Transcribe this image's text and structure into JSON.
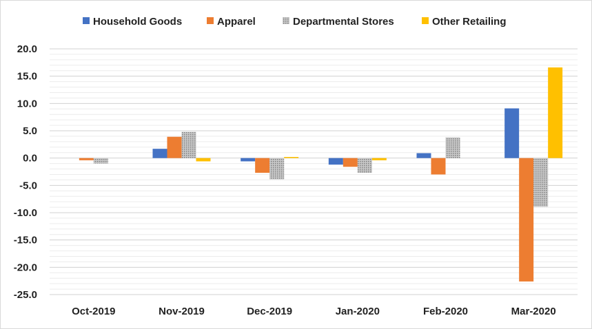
{
  "chart_data": {
    "type": "bar",
    "title": "",
    "xlabel": "",
    "ylabel": "",
    "ylim": [
      -25,
      20
    ],
    "y_ticks": [
      "20.0",
      "15.0",
      "10.0",
      "5.0",
      "0.0",
      "-5.0",
      "-10.0",
      "-15.0",
      "-20.0",
      "-25.0"
    ],
    "grid": true,
    "legend_position": "top",
    "categories": [
      "Oct-2019",
      "Nov-2019",
      "Dec-2019",
      "Jan-2020",
      "Feb-2020",
      "Mar-2020"
    ],
    "series": [
      {
        "name": "Household Goods",
        "color": "#4472c4",
        "pattern": "solid",
        "values": [
          0.0,
          1.7,
          -0.6,
          -1.2,
          0.9,
          9.1
        ]
      },
      {
        "name": "Apparel",
        "color": "#ed7d31",
        "pattern": "solid",
        "values": [
          -0.4,
          3.9,
          -2.7,
          -1.6,
          -3.0,
          -22.6
        ]
      },
      {
        "name": "Departmental Stores",
        "color": "#a5a5a5",
        "pattern": "dotted",
        "values": [
          -1.0,
          4.8,
          -3.9,
          -2.7,
          3.8,
          -8.9
        ]
      },
      {
        "name": "Other Retailing",
        "color": "#ffc000",
        "pattern": "solid",
        "values": [
          0.0,
          -0.6,
          0.2,
          -0.4,
          0.0,
          16.6
        ]
      }
    ]
  }
}
